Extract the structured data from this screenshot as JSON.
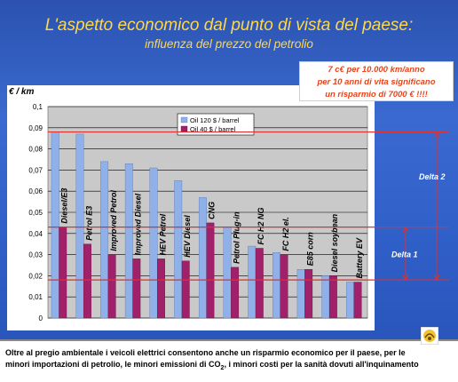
{
  "slide": {
    "title": "L'aspetto economico dal punto di vista del paese:",
    "subtitle": "influenza del prezzo del petrolio",
    "callout_lines": [
      "7 c€ per 10.000 km/anno",
      "per 10 anni di vita significano",
      "un risparmio di 7000 € !!!!"
    ],
    "footer_text_1": "Oltre al pregio ambientale i veicoli elettrici consentono anche un risparmio economico per il paese, per le",
    "footer_text_2a": "minori importazioni di petrolio, le minori emissioni di CO",
    "footer_sub": "2",
    "footer_text_2b": ", i minori costi per la sanità dovuti all'inquinamento"
  },
  "colors": {
    "banner_blue": "#2f5fc8",
    "title_yellow": "#ffd84a",
    "bar_blue": "#8fb0e8",
    "bar_magenta": "#a0206a",
    "delta_line_red": "#e03030",
    "callout_text": "#e8431a",
    "plot_bg": "#c9c9c9"
  },
  "chart_data": {
    "type": "bar",
    "ylabel": "€ / km",
    "ylim": [
      0,
      0.1
    ],
    "yticks": [
      "0",
      "0,01",
      "0,02",
      "0,03",
      "0,04",
      "0,05",
      "0,06",
      "0,07",
      "0,08",
      "0,09",
      "0,1"
    ],
    "categories": [
      "Diesel/E3",
      "Petrol E3",
      "Improved Petrol",
      "Improved Diesel",
      "HEV Petrol",
      "HEV Diesel",
      "CNG",
      "Petrol Plug-in",
      "FC H2 NG",
      "FC H2 el.",
      "E85 corn",
      "Diesel soybean",
      "Battery EV"
    ],
    "series": [
      {
        "name": "Oil  120 $ / barrel",
        "values": [
          0.088,
          0.087,
          0.074,
          0.073,
          0.071,
          0.065,
          0.057,
          0.043,
          0.034,
          0.031,
          0.023,
          0.02,
          0.017
        ]
      },
      {
        "name": "Oil   40 $ / barrel",
        "values": [
          0.043,
          0.035,
          0.03,
          0.028,
          0.028,
          0.027,
          0.045,
          0.024,
          0.033,
          0.03,
          0.023,
          0.02,
          0.017
        ]
      }
    ],
    "legend": "top-center",
    "annotations": {
      "delta2": "Delta 2",
      "delta1": "Delta 1"
    },
    "delta_levels": [
      0.088,
      0.043,
      0.018
    ]
  }
}
